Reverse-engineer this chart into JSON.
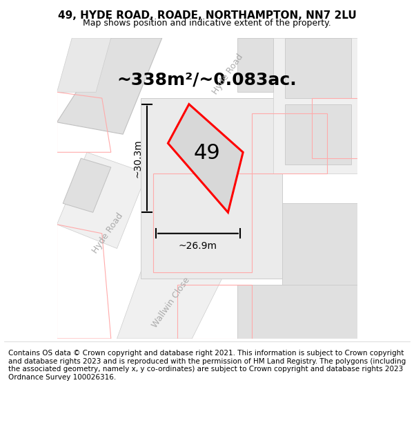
{
  "title": "49, HYDE ROAD, ROADE, NORTHAMPTON, NN7 2LU",
  "subtitle": "Map shows position and indicative extent of the property.",
  "area_label": "~338m²/~0.083ac.",
  "plot_number": "49",
  "width_label": "~26.9m",
  "height_label": "~30.3m",
  "footer": "Contains OS data © Crown copyright and database right 2021. This information is subject to Crown copyright and database rights 2023 and is reproduced with the permission of HM Land Registry. The polygons (including the associated geometry, namely x, y co-ordinates) are subject to Crown copyright and database rights 2023 Ordnance Survey 100026316.",
  "bg_color": "#f5f5f5",
  "map_bg": "#ffffff",
  "road_fill": "#e8e8e8",
  "road_stroke": "#cccccc",
  "plot_outline_color": "#ff0000",
  "plot_fill_color": "#e0e0e0",
  "dim_line_color": "#000000",
  "road_label_color": "#aaaaaa",
  "title_fontsize": 11,
  "subtitle_fontsize": 9,
  "area_fontsize": 18,
  "plot_num_fontsize": 22,
  "dim_fontsize": 10,
  "footer_fontsize": 7.5,
  "map_xlim": [
    0,
    1
  ],
  "map_ylim": [
    0,
    1
  ]
}
